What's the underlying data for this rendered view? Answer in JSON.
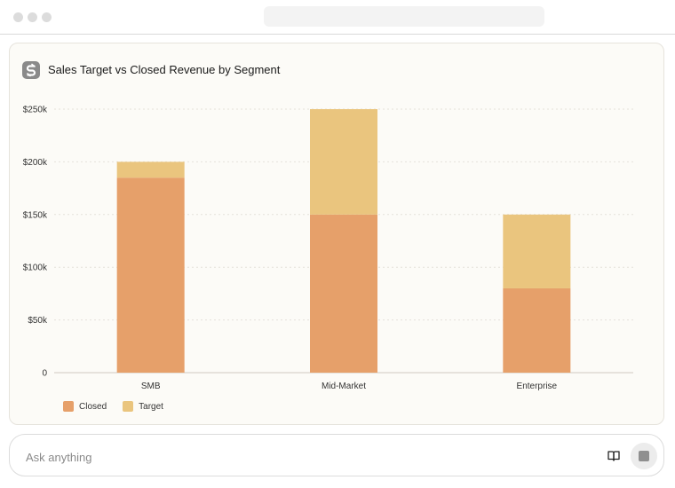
{
  "app": {
    "window_title": ""
  },
  "chart_card": {
    "title": "Sales Target vs Closed Revenue by Segment"
  },
  "chart_data": {
    "type": "bar",
    "stacked": true,
    "title": "Sales Target vs Closed Revenue by Segment",
    "categories": [
      "SMB",
      "Mid-Market",
      "Enterprise"
    ],
    "series": [
      {
        "name": "Closed",
        "values": [
          185000,
          150000,
          80000
        ],
        "color": "#e6a06a"
      },
      {
        "name": "Target",
        "values": [
          15000,
          100000,
          70000
        ],
        "color": "#eac57e"
      }
    ],
    "ylim": [
      0,
      250000
    ],
    "yticks": [
      0,
      50000,
      100000,
      150000,
      200000,
      250000
    ],
    "ytick_labels": [
      "0",
      "$50k",
      "$100k",
      "$150k",
      "$200k",
      "$250k"
    ],
    "grid": true,
    "legend_position": "bottom-left",
    "xlabel": "",
    "ylabel": ""
  },
  "ask_bar": {
    "placeholder": "Ask anything",
    "book_icon": "book-icon",
    "send_icon": "stop-icon"
  }
}
